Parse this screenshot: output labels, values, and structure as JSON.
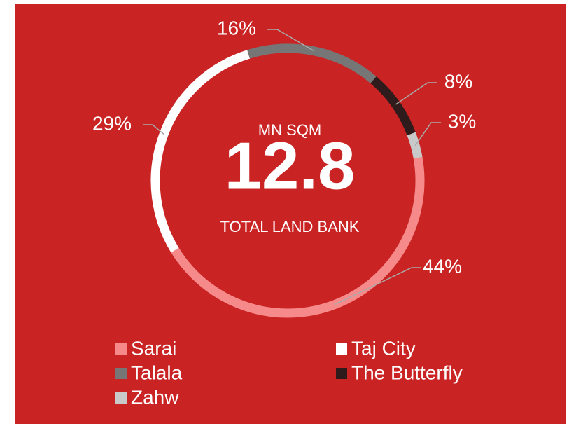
{
  "chart_data": {
    "type": "pie",
    "donut": true,
    "center_top": "MN SQM",
    "center_value": "12.8",
    "center_bottom": "TOTAL LAND BANK",
    "series": [
      {
        "name": "Sarai",
        "color": "#f68a8a"
      },
      {
        "name": "Taj City",
        "color": "#ffffff"
      },
      {
        "name": "Talala",
        "color": "#767676"
      },
      {
        "name": "The Butterfly",
        "color": "#2f1b1b"
      },
      {
        "name": "Zahw",
        "color": "#c9c9c9"
      }
    ],
    "values": [
      44,
      29,
      16,
      8,
      3
    ],
    "value_labels": [
      "44%",
      "29%",
      "16%",
      "8%",
      "3%"
    ],
    "legend": "bottom"
  }
}
